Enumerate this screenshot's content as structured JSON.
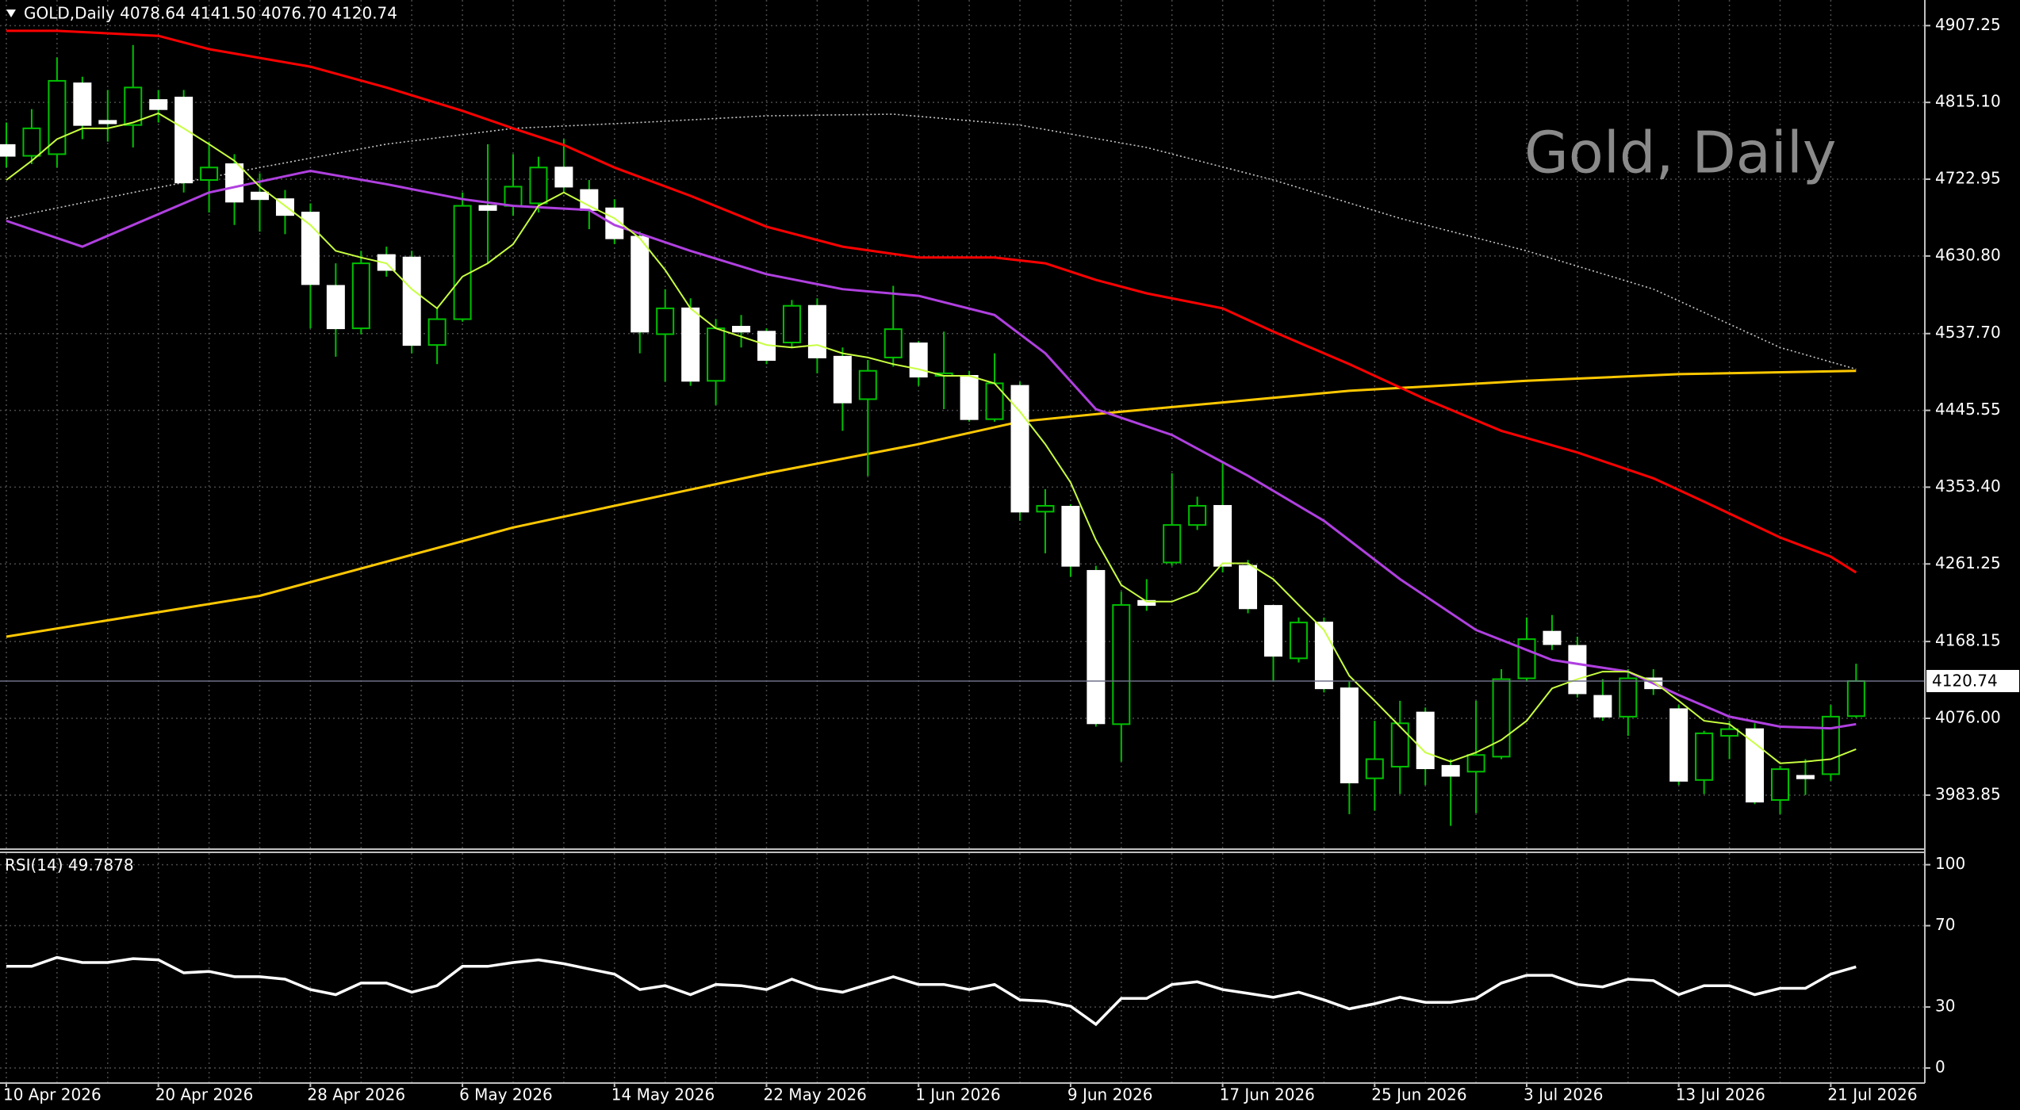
{
  "chart_data": [
    {
      "type": "candlestick",
      "header": "GOLD,Daily  4078.64 4141.50 4076.70 4120.74",
      "watermark": "Gold, Daily",
      "categories": [
        "10 Apr 2026",
        null,
        null,
        null,
        null,
        null,
        "20 Apr 2026",
        null,
        null,
        null,
        null,
        null,
        "28 Apr 2026",
        null,
        null,
        null,
        null,
        null,
        "6 May 2026",
        null,
        null,
        null,
        null,
        null,
        "14 May 2026",
        null,
        null,
        null,
        null,
        null,
        "22 May 2026",
        null,
        null,
        null,
        null,
        null,
        "1 Jun 2026",
        null,
        null,
        null,
        null,
        null,
        "9 Jun 2026",
        null,
        null,
        null,
        null,
        null,
        "17 Jun 2026",
        null,
        null,
        null,
        null,
        null,
        "25 Jun 2026",
        null,
        null,
        null,
        null,
        null,
        "3 Jul 2026",
        null,
        null,
        null,
        null,
        null,
        "13 Jul 2026",
        null,
        null,
        null,
        null,
        null,
        "21 Jul 2026",
        null
      ],
      "open": [
        4764,
        4751,
        4753,
        4838,
        4793,
        4788,
        4818,
        4821,
        4722,
        4741,
        4707,
        4699,
        4683,
        4595,
        4544,
        4632,
        4629,
        4524,
        4555,
        4691,
        4691,
        4694,
        4737,
        4710,
        4688,
        4654,
        4537,
        4568,
        4481,
        4546,
        4540,
        4527,
        4571,
        4510,
        4459,
        4509,
        4526,
        4487,
        4487,
        4435,
        4475,
        4324,
        4330,
        4253,
        4069,
        4217,
        4263,
        4308,
        4331,
        4259,
        4211,
        4148,
        4191,
        4112,
        4004,
        4018,
        4083,
        4019,
        4012,
        4030,
        4124,
        4180,
        4163,
        4103,
        4078,
        4124,
        4087,
        4002,
        4055,
        4063,
        3978,
        4007,
        4009,
        4078.64
      ],
      "high": [
        4791,
        4807,
        4869,
        4846,
        4830,
        4884,
        4830,
        4830,
        4768,
        4753,
        4730,
        4710,
        4694,
        4622,
        4637,
        4642,
        4637,
        4568,
        4707,
        4765,
        4753,
        4750,
        4771,
        4722,
        4699,
        4660,
        4591,
        4580,
        4555,
        4560,
        4544,
        4578,
        4580,
        4521,
        4506,
        4595,
        4529,
        4540,
        4493,
        4514,
        4480,
        4351,
        4333,
        4259,
        4228,
        4243,
        4370,
        4342,
        4382,
        4266,
        4212,
        4197,
        4197,
        4120,
        4073,
        4097,
        4089,
        4027,
        4097,
        4135,
        4197,
        4200,
        4174,
        4123,
        4135,
        4135,
        4092,
        4061,
        4073,
        4070,
        4019,
        4027,
        4092,
        4141.5
      ],
      "low": [
        4737,
        4741,
        4737,
        4771,
        4768,
        4761,
        4791,
        4707,
        4683,
        4668,
        4660,
        4657,
        4544,
        4510,
        4537,
        4606,
        4514,
        4501,
        4552,
        4622,
        4679,
        4683,
        4707,
        4663,
        4645,
        4514,
        4480,
        4475,
        4452,
        4521,
        4501,
        4521,
        4490,
        4421,
        4367,
        4498,
        4475,
        4447,
        4432,
        4432,
        4313,
        4274,
        4246,
        4066,
        4024,
        4205,
        4259,
        4302,
        4251,
        4202,
        4120,
        4143,
        4107,
        3961,
        3965,
        3985,
        3996,
        3947,
        3962,
        4027,
        4120,
        4158,
        4101,
        4073,
        4055,
        4104,
        3996,
        3985,
        4027,
        3973,
        3961,
        3984,
        4001,
        4076.7
      ],
      "close": [
        4751,
        4784,
        4841,
        4788,
        4790,
        4833,
        4807,
        4719,
        4737,
        4696,
        4699,
        4680,
        4597,
        4544,
        4622,
        4614,
        4524,
        4555,
        4691,
        4686,
        4714,
        4737,
        4714,
        4686,
        4652,
        4540,
        4568,
        4481,
        4544,
        4540,
        4506,
        4571,
        4509,
        4455,
        4493,
        4543,
        4486,
        4490,
        4435,
        4478,
        4324,
        4331,
        4259,
        4070,
        4212,
        4212,
        4308,
        4331,
        4259,
        4208,
        4151,
        4191,
        4112,
        3999,
        4027,
        4070,
        4016,
        4007,
        4032,
        4123,
        4171,
        4165,
        4106,
        4078,
        4124,
        4112,
        4001,
        4058,
        4063,
        3976,
        4015,
        4004,
        4078,
        4120.74
      ],
      "up_color": "#000000",
      "down_color": "#ffffff",
      "line_color": "#00c000",
      "overlays": [
        {
          "color": "#c8c8c8",
          "dotted": true,
          "x": [
            0,
            5,
            10,
            15,
            20,
            25,
            30,
            35,
            40,
            45,
            50,
            55,
            60,
            65,
            70,
            73
          ],
          "values": [
            4676,
            4707,
            4737,
            4765,
            4784,
            4791,
            4799,
            4801,
            4788,
            4761,
            4722,
            4676,
            4637,
            4591,
            4521,
            4495
          ]
        },
        {
          "color": "#ffc800",
          "dotted": false,
          "x": [
            0,
            10,
            20,
            30,
            36,
            40,
            44,
            48,
            53,
            60,
            66,
            73
          ],
          "values": [
            4174,
            4223,
            4305,
            4370,
            4405,
            4432,
            4444,
            4455,
            4469,
            4481,
            4489,
            4493
          ]
        },
        {
          "color": "#ff0000",
          "dotted": false,
          "x": [
            0,
            2,
            6,
            8,
            12,
            15,
            18,
            20,
            22,
            24,
            27,
            30,
            33,
            36,
            39,
            41,
            43,
            45,
            48,
            50,
            53,
            56,
            59,
            62,
            65,
            67,
            70,
            72,
            73
          ],
          "values": [
            4901,
            4901,
            4895,
            4879,
            4858,
            4833,
            4805,
            4784,
            4764,
            4737,
            4703,
            4666,
            4642,
            4629,
            4629,
            4622,
            4602,
            4586,
            4568,
            4540,
            4501,
            4459,
            4421,
            4395,
            4364,
            4336,
            4293,
            4270,
            4251
          ]
        },
        {
          "color": "#b040e0",
          "dotted": false,
          "x": [
            0,
            3,
            8,
            12,
            15,
            18,
            20,
            23,
            24,
            27,
            30,
            33,
            36,
            39,
            41,
            43,
            46,
            49,
            52,
            55,
            58,
            61,
            64,
            66,
            68,
            70,
            72,
            73
          ],
          "values": [
            4673,
            4642,
            4707,
            4733,
            4717,
            4699,
            4691,
            4686,
            4668,
            4637,
            4609,
            4591,
            4583,
            4560,
            4514,
            4447,
            4416,
            4367,
            4313,
            4243,
            4182,
            4146,
            4132,
            4104,
            4078,
            4066,
            4064,
            4069
          ]
        },
        {
          "color": "#c8ff40",
          "dotted": false,
          "x": [
            0,
            1,
            2,
            3,
            4,
            5,
            6,
            7,
            8,
            9,
            10,
            11,
            12,
            13,
            14,
            15,
            16,
            17,
            18,
            19,
            20,
            21,
            22,
            23,
            24,
            25,
            26,
            27,
            28,
            29,
            30,
            31,
            32,
            33,
            34,
            35,
            36,
            37,
            38,
            39,
            40,
            41,
            42,
            43,
            44,
            45,
            46,
            47,
            48,
            49,
            50,
            51,
            52,
            53,
            54,
            55,
            56,
            57,
            58,
            59,
            60,
            61,
            62,
            63,
            64,
            65,
            66,
            67,
            68,
            69,
            70,
            71,
            72,
            73
          ],
          "values": [
            4722,
            4745,
            4771,
            4784,
            4784,
            4791,
            4802,
            4784,
            4765,
            4745,
            4714,
            4691,
            4668,
            4637,
            4629,
            4622,
            4591,
            4568,
            4606,
            4622,
            4645,
            4691,
            4707,
            4691,
            4676,
            4652,
            4614,
            4568,
            4544,
            4534,
            4524,
            4521,
            4524,
            4514,
            4509,
            4501,
            4495,
            4487,
            4487,
            4478,
            4444,
            4405,
            4359,
            4290,
            4236,
            4216,
            4216,
            4228,
            4262,
            4262,
            4243,
            4212,
            4182,
            4127,
            4097,
            4066,
            4035,
            4024,
            4035,
            4050,
            4073,
            4112,
            4123,
            4132,
            4132,
            4120,
            4097,
            4073,
            4069,
            4046,
            4022,
            4024,
            4027,
            4039
          ]
        }
      ],
      "last_price": 4120.74,
      "ylim": [
        3919,
        4938
      ],
      "yticks": [
        4907.25,
        {
          "value": 4815.1,
          "label": "4815.10"
        },
        4722.95,
        {
          "value": 4630.8,
          "label": "4630.80"
        },
        {
          "value": 4537.7,
          "label": "4537.70"
        },
        4445.55,
        {
          "value": 4353.4,
          "label": "4353.40"
        },
        4261.25,
        4168.15,
        {
          "value": 4076,
          "label": "4076.00"
        },
        3983.85
      ],
      "grid": true
    },
    {
      "type": "line",
      "title": "RSI(14)",
      "current": 49.7878,
      "color": "#ffffff",
      "values": [
        50.0,
        50.0,
        54.4,
        51.9,
        51.9,
        53.8,
        53.2,
        46.8,
        47.5,
        44.9,
        44.9,
        43.7,
        38.6,
        36.1,
        41.8,
        41.8,
        37.3,
        40.5,
        50.0,
        50.0,
        51.9,
        53.2,
        51.3,
        48.7,
        46.2,
        38.6,
        40.5,
        36.1,
        41.1,
        40.5,
        38.6,
        43.7,
        39.2,
        37.3,
        41.1,
        44.9,
        41.1,
        41.1,
        38.6,
        41.1,
        33.5,
        32.9,
        30.4,
        21.5,
        34.2,
        34.2,
        41.1,
        42.4,
        38.6,
        36.7,
        34.8,
        37.3,
        33.5,
        29.1,
        31.6,
        34.8,
        32.3,
        32.3,
        34.2,
        41.8,
        45.6,
        45.6,
        41.1,
        39.9,
        43.7,
        43.0,
        36.1,
        40.5,
        40.5,
        36.1,
        39.2,
        39.2,
        46.2,
        49.7878
      ],
      "ylim": [
        -7,
        105.7
      ],
      "yticks": [
        100,
        70,
        30,
        0
      ],
      "grid": true
    }
  ]
}
